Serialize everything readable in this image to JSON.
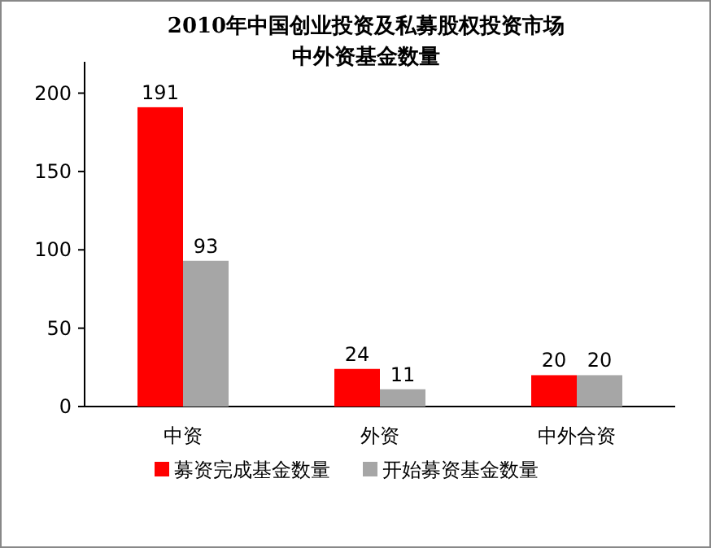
{
  "chart_data": {
    "type": "bar",
    "title": "2010年中国创业投资及私募股权投资市场",
    "subtitle": "中外资基金数量",
    "categories": [
      "中资",
      "外资",
      "中外合资"
    ],
    "series": [
      {
        "name": "募资完成基金数量",
        "color": "#ff0000",
        "values": [
          191,
          24,
          20
        ]
      },
      {
        "name": "开始募资基金数量",
        "color": "#a6a6a6",
        "values": [
          93,
          11,
          20
        ]
      }
    ],
    "ylim": [
      0,
      220
    ],
    "yticks": [
      0,
      50,
      100,
      150,
      200
    ],
    "data_labels": true,
    "legend": "bottom"
  }
}
